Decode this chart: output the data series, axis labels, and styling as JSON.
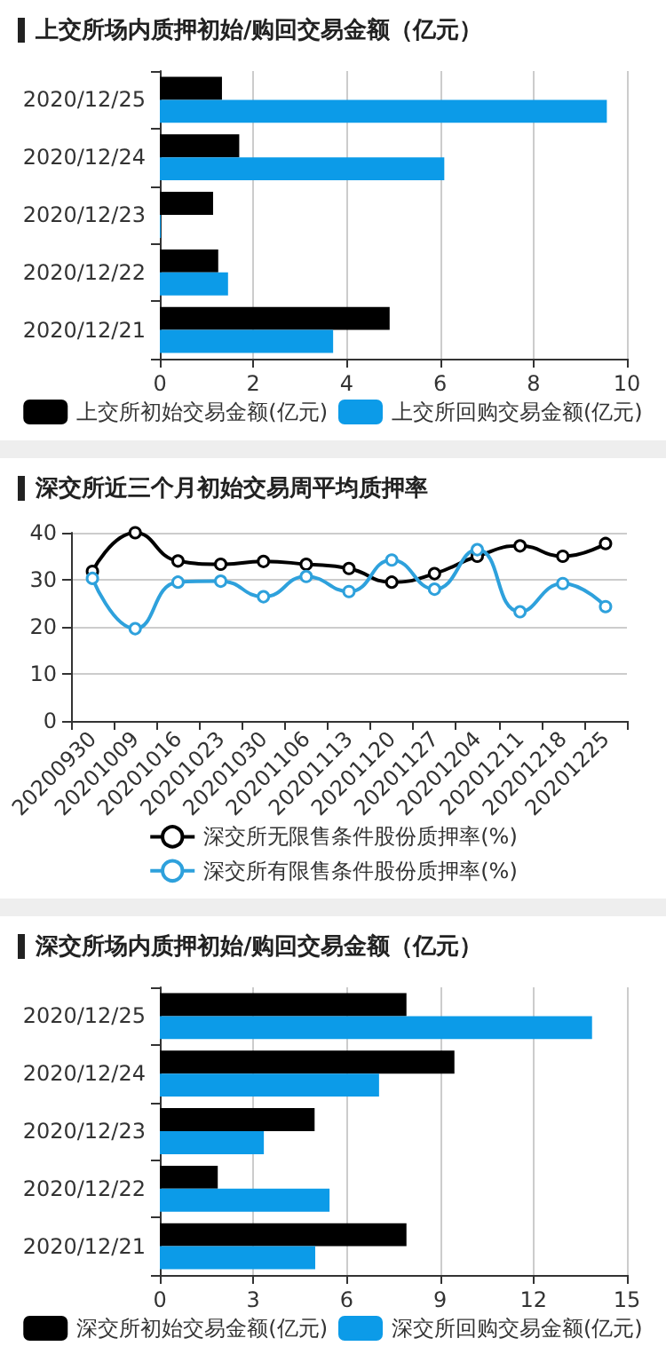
{
  "chart_data": [
    {
      "type": "bar",
      "title": "上交所场内质押初始/购回交易金额（亿元）",
      "orientation": "horizontal",
      "categories": [
        "2020/12/25",
        "2020/12/24",
        "2020/12/23",
        "2020/12/22",
        "2020/12/21"
      ],
      "series": [
        {
          "name": "上交所初始交易金额(亿元)",
          "color": "#000000",
          "values": [
            1.33,
            1.7,
            1.14,
            1.25,
            4.92
          ]
        },
        {
          "name": "上交所回购交易金额(亿元)",
          "color": "#0c9be8",
          "values": [
            9.57,
            6.09,
            0.02,
            1.46,
            3.71
          ]
        }
      ],
      "xlim": [
        0,
        10
      ],
      "xticks": [
        0,
        2,
        4,
        6,
        8,
        10
      ],
      "grid": "x",
      "legend": "bottom"
    },
    {
      "type": "line",
      "title": "深交所近三个月初始交易周平均质押率",
      "categories": [
        "20200930",
        "20201009",
        "20201016",
        "20201023",
        "20201030",
        "20201106",
        "20201113",
        "20201120",
        "20201127",
        "20201204",
        "20201211",
        "20201218",
        "20201225"
      ],
      "series": [
        {
          "name": "深交所无限售条件股份质押率(%)",
          "color": "#000000",
          "values": [
            31.8,
            40,
            34,
            33.3,
            33.9,
            33.3,
            32.4,
            29.5,
            31.3,
            35,
            37.2,
            35,
            37.7
          ]
        },
        {
          "name": "深交所有限售条件股份质押率(%)",
          "color": "#2ea1dc",
          "values": [
            30.3,
            19.6,
            29.5,
            29.7,
            26.4,
            30.7,
            27.5,
            34.2,
            28,
            36.4,
            23.2,
            29.2,
            24.3
          ]
        }
      ],
      "ylim": [
        0,
        40
      ],
      "yticks": [
        0,
        10,
        20,
        30,
        40
      ],
      "grid": "y",
      "legend": "bottom",
      "marker": "circle"
    },
    {
      "type": "bar",
      "title": "深交所场内质押初始/购回交易金额（亿元）",
      "orientation": "horizontal",
      "categories": [
        "2020/12/25",
        "2020/12/24",
        "2020/12/23",
        "2020/12/22",
        "2020/12/21"
      ],
      "series": [
        {
          "name": "深交所初始交易金额(亿元)",
          "color": "#000000",
          "values": [
            7.92,
            9.46,
            4.97,
            1.86,
            7.92
          ]
        },
        {
          "name": "深交所回购交易金额(亿元)",
          "color": "#0c9be8",
          "values": [
            13.88,
            7.04,
            3.34,
            5.45,
            4.99
          ]
        }
      ],
      "xlim": [
        0,
        15
      ],
      "xticks": [
        0,
        3,
        6,
        9,
        12,
        15
      ],
      "grid": "x",
      "legend": "bottom"
    }
  ]
}
